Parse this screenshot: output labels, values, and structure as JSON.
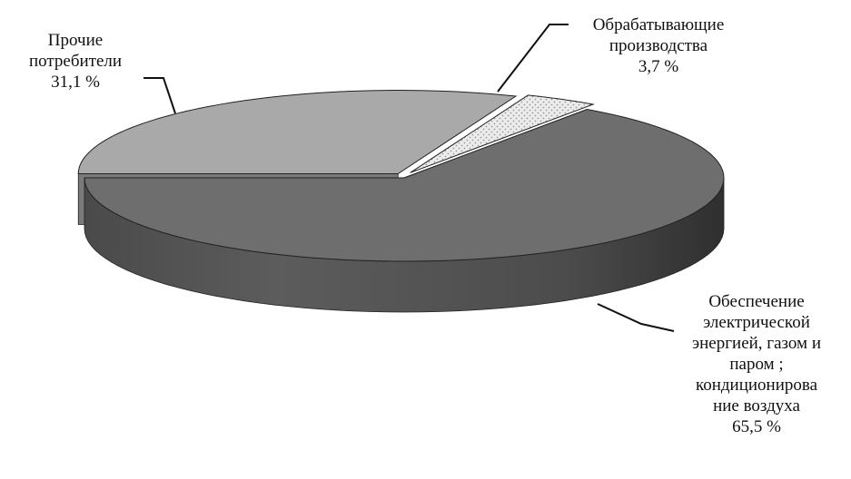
{
  "chart_data": {
    "type": "pie",
    "style": "3d-exploded",
    "slices": [
      {
        "key": "other",
        "label_lines": [
          "Прочие",
          "потребители"
        ],
        "value": 31.1,
        "value_text": "31,1 %",
        "color": "#a9a9a9",
        "pattern": "none"
      },
      {
        "key": "manuf",
        "label_lines": [
          "Обрабатывающие",
          "производства"
        ],
        "value": 3.7,
        "value_text": "3,7 %",
        "color": "#e6e6e6",
        "pattern": "dots"
      },
      {
        "key": "energy",
        "label_lines": [
          "Обеспечение",
          "электрической",
          "энергией, газом и",
          "паром ;",
          "кондиционирова",
          "ние воздуха"
        ],
        "value": 65.5,
        "value_text": "65,5 %",
        "color": "#6e6e6e",
        "pattern": "none"
      }
    ]
  }
}
